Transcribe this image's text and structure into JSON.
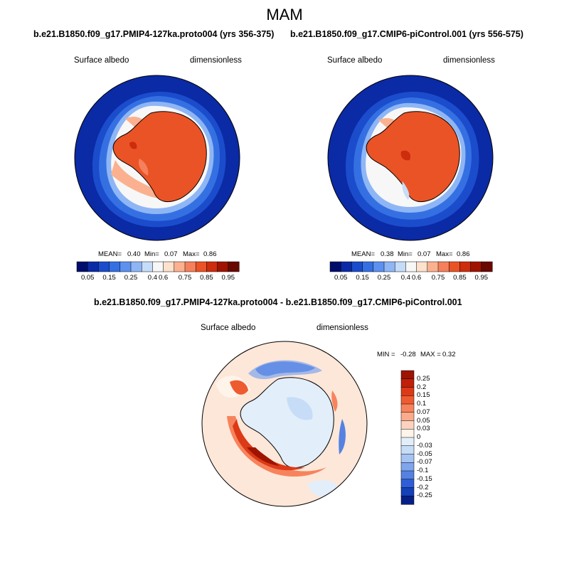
{
  "title": "MAM",
  "panels": [
    {
      "run_title": "b.e21.B1850.f09_g17.PMIP4-127ka.proto004 (yrs 356-375)",
      "variable": "Surface albedo",
      "units": "dimensionless",
      "stats": {
        "mean_label": "MEAN=",
        "mean": "0.40",
        "min_label": "Min=",
        "min": "0.07",
        "max_label": "Max=",
        "max": "0.86"
      }
    },
    {
      "run_title": "b.e21.B1850.f09_g17.CMIP6-piControl.001 (yrs 556-575)",
      "variable": "Surface albedo",
      "units": "dimensionless",
      "stats": {
        "mean_label": "MEAN=",
        "mean": "0.38",
        "min_label": "Min=",
        "min": "0.07",
        "max_label": "Max=",
        "max": "0.86"
      }
    }
  ],
  "abs_colorbar": {
    "colors": [
      "#000d6b",
      "#0b2aa6",
      "#1b4ccb",
      "#3570e3",
      "#5c91ef",
      "#8eb6f5",
      "#c5dcf9",
      "#f7f7f7",
      "#fde1cc",
      "#fbb18f",
      "#f5805b",
      "#ea5326",
      "#cd2c0d",
      "#9e1400",
      "#680800"
    ],
    "labels": [
      "0.05",
      "0.15",
      "0.25",
      "0.4",
      "0.6",
      "0.75",
      "0.85",
      "0.95"
    ],
    "label_slots": [
      1,
      3,
      5,
      7,
      8,
      10,
      12,
      14
    ]
  },
  "diff": {
    "title": "b.e21.B1850.f09_g17.PMIP4-127ka.proto004 - b.e21.B1850.f09_g17.CMIP6-piControl.001",
    "variable": "Surface albedo",
    "units": "dimensionless",
    "minmax": {
      "min_label": "MIN =",
      "min": "-0.28",
      "max_label": "MAX =",
      "max": "0.32"
    },
    "colorbar": {
      "colors": [
        "#9e1400",
        "#c0200a",
        "#dc3a17",
        "#ef5b30",
        "#f7835c",
        "#fbab8c",
        "#fdd3bf",
        "#fff4ea",
        "#e3eefb",
        "#c6dcf7",
        "#a6c4f2",
        "#7fa5ec",
        "#5582e2",
        "#2e5fd6",
        "#1440b8",
        "#061f87"
      ],
      "labels": [
        "0.25",
        "0.2",
        "0.15",
        "0.1",
        "0.07",
        "0.05",
        "0.03",
        "0",
        "-0.03",
        "-0.05",
        "-0.07",
        "-0.1",
        "-0.15",
        "-0.2",
        "-0.25"
      ]
    }
  }
}
